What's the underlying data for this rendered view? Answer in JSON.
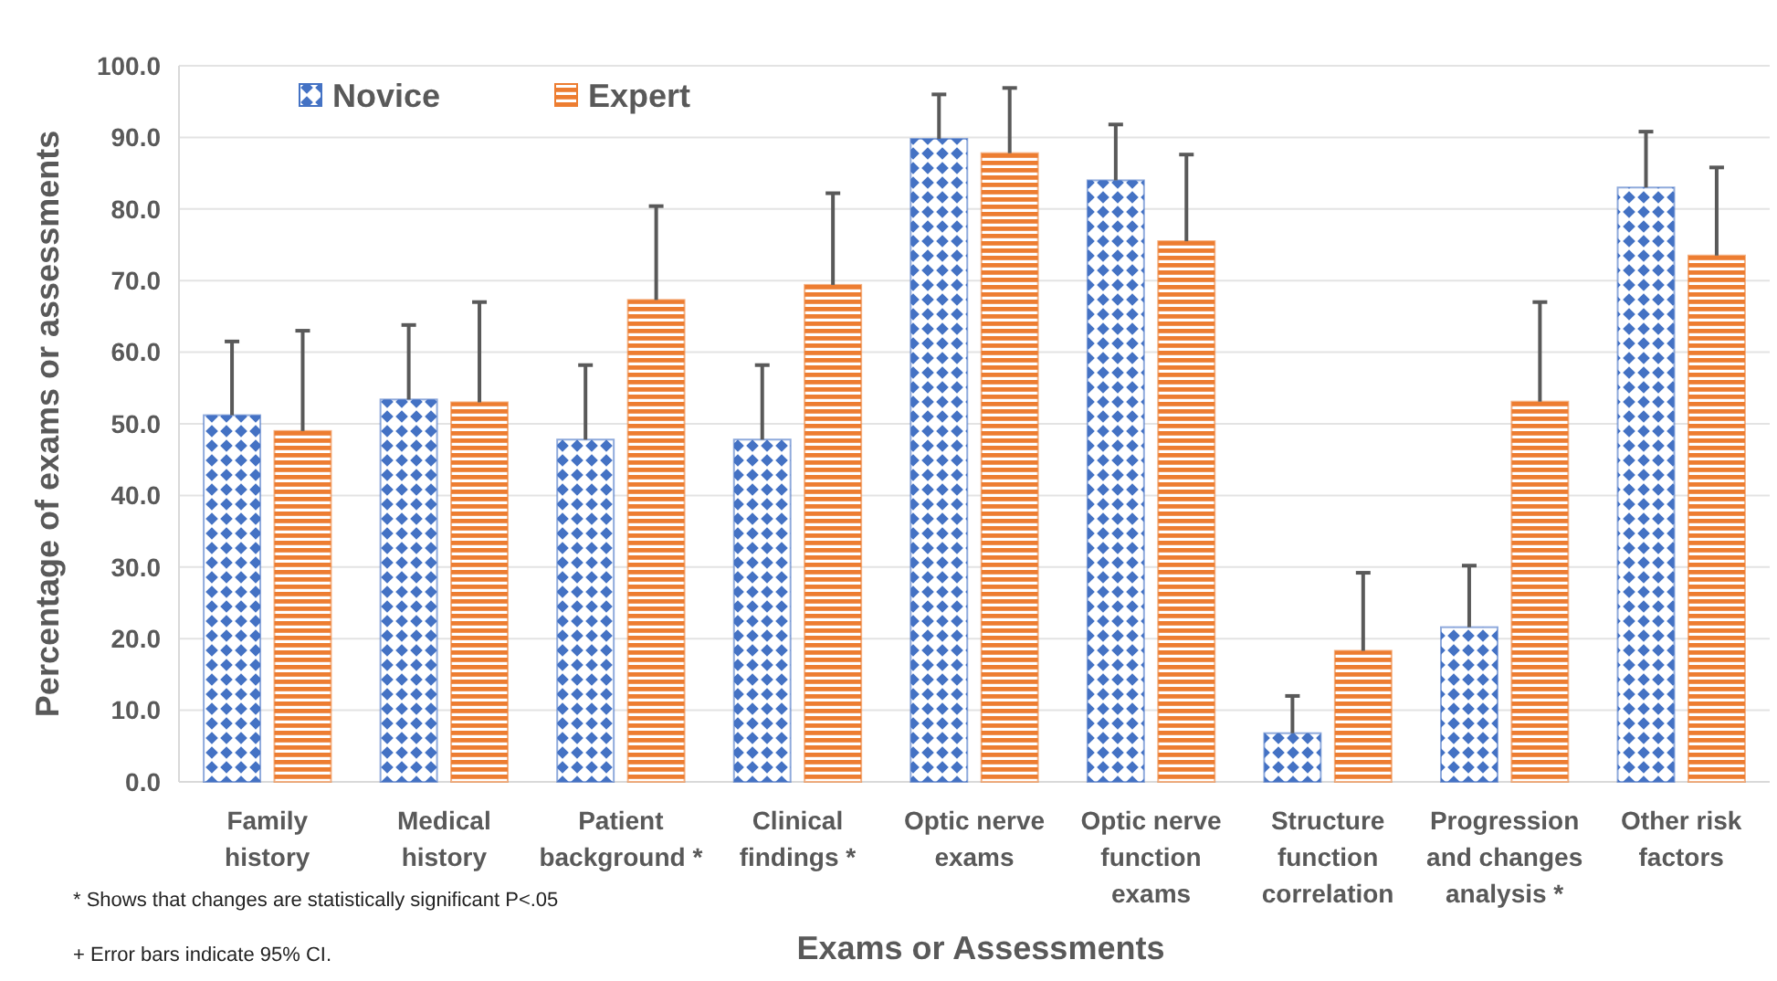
{
  "chart_data": {
    "type": "bar",
    "xlabel": "Exams or Assessments",
    "ylabel": "Percentage of exams or assessments",
    "categories": [
      "Family history",
      "Medical history",
      "Patient background *",
      "Clinical findings *",
      "Optic nerve exams",
      "Optic nerve function exams",
      "Structure function correlation",
      "Progression and changes analysis *",
      "Other risk factors"
    ],
    "series": [
      {
        "name": "Novice",
        "color": "#4472c4",
        "values": [
          51.2,
          53.4,
          47.8,
          47.8,
          89.8,
          84.0,
          6.8,
          21.6,
          83.0
        ],
        "errors": [
          [
            51.2,
            61.5
          ],
          [
            53.4,
            63.8
          ],
          [
            47.8,
            58.2
          ],
          [
            47.8,
            58.2
          ],
          [
            89.8,
            96.0
          ],
          [
            84.0,
            91.8
          ],
          [
            6.8,
            12.0
          ],
          [
            21.6,
            30.2
          ],
          [
            83.0,
            90.8
          ]
        ]
      },
      {
        "name": "Expert",
        "color": "#ed7d31",
        "values": [
          49.0,
          53.0,
          67.3,
          69.4,
          87.8,
          75.5,
          18.3,
          53.1,
          73.5
        ],
        "errors": [
          [
            49.0,
            63.0
          ],
          [
            53.0,
            67.0
          ],
          [
            67.3,
            80.4
          ],
          [
            69.4,
            82.2
          ],
          [
            87.8,
            96.9
          ],
          [
            75.5,
            87.6
          ],
          [
            18.3,
            29.2
          ],
          [
            53.1,
            67.0
          ],
          [
            73.5,
            85.8
          ]
        ]
      }
    ],
    "ylim": [
      0,
      100
    ],
    "yticks": [
      {
        "value": 0,
        "label": "0.0"
      },
      {
        "value": 10,
        "label": "10.0"
      },
      {
        "value": 20,
        "label": "20.0"
      },
      {
        "value": 30,
        "label": "30.0"
      },
      {
        "value": 40,
        "label": "40.0"
      },
      {
        "value": 50,
        "label": "50.0"
      },
      {
        "value": 60,
        "label": "60.0"
      },
      {
        "value": 70,
        "label": "70.0"
      },
      {
        "value": 80,
        "label": "80.0"
      },
      {
        "value": 90,
        "label": "90.0"
      },
      {
        "value": 100,
        "label": "100.0"
      }
    ],
    "grid": "y",
    "legend": "top left",
    "annotations": [
      "* Shows that changes are statistically significant P<.05",
      "+ Error bars indicate 95% CI."
    ]
  }
}
